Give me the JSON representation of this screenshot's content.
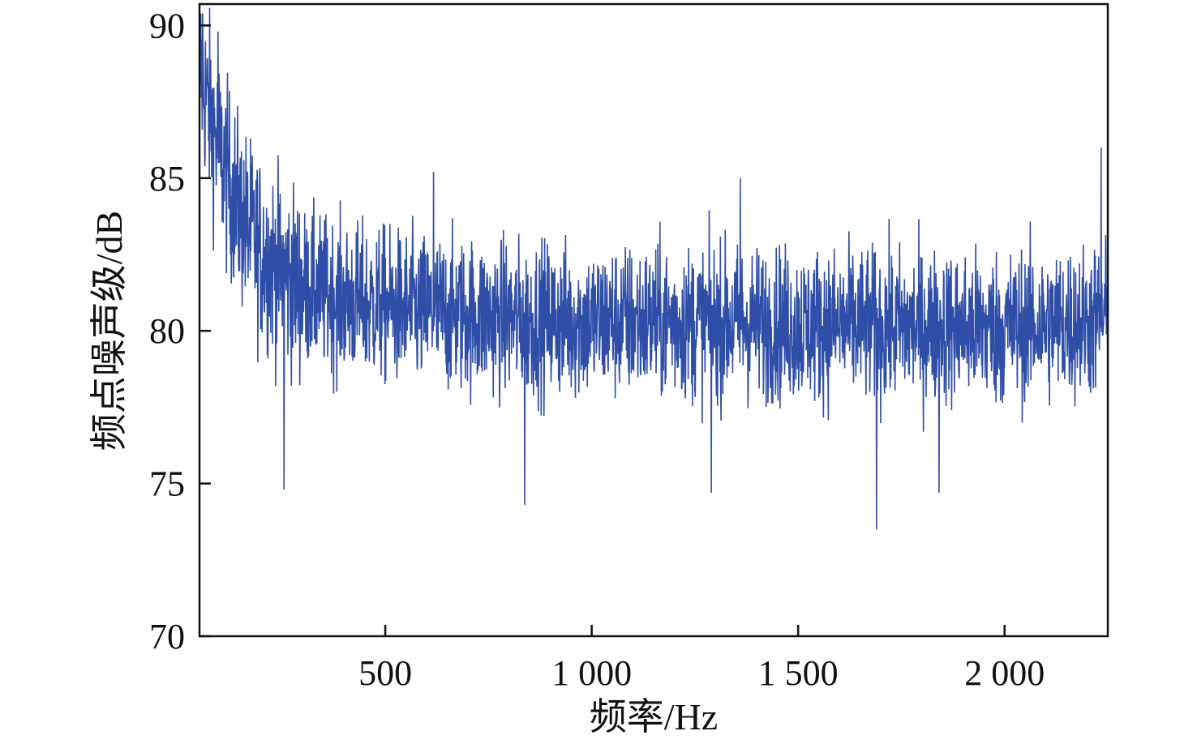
{
  "chart_data": {
    "type": "line",
    "xlabel": "频率/Hz",
    "ylabel": "频点噪声级/dB",
    "xlim": [
      50,
      2250
    ],
    "ylim": [
      70,
      90.7
    ],
    "xticks": [
      {
        "value": 500,
        "label": "500"
      },
      {
        "value": 1000,
        "label": "1 000"
      },
      {
        "value": 1500,
        "label": "1 500"
      },
      {
        "value": 2000,
        "label": "2 000"
      }
    ],
    "yticks": [
      {
        "value": 70,
        "label": "70"
      },
      {
        "value": 75,
        "label": "75"
      },
      {
        "value": 80,
        "label": "80"
      },
      {
        "value": 85,
        "label": "85"
      },
      {
        "value": 90,
        "label": "90"
      }
    ],
    "grid": false,
    "legend": "none",
    "series_color": "#2e4ea8",
    "trend": {
      "x": [
        50,
        60,
        80,
        100,
        120,
        150,
        180,
        200,
        250,
        300,
        400,
        500,
        600,
        800,
        1000,
        1200,
        1500,
        1800,
        2000,
        2200,
        2250
      ],
      "y": [
        88.8,
        88.0,
        86.8,
        85.8,
        84.9,
        83.8,
        83.0,
        82.6,
        81.9,
        81.4,
        81.0,
        80.8,
        80.6,
        80.4,
        80.3,
        80.3,
        80.2,
        80.1,
        80.1,
        80.3,
        80.4
      ]
    },
    "spread_db": 1.7,
    "extremes": [
      {
        "x": 58,
        "y": 90.4
      },
      {
        "x": 95,
        "y": 89.8
      },
      {
        "x": 255,
        "y": 74.8
      },
      {
        "x": 617,
        "y": 85.2
      },
      {
        "x": 838,
        "y": 74.3
      },
      {
        "x": 1290,
        "y": 74.7
      },
      {
        "x": 1360,
        "y": 85.0
      },
      {
        "x": 1690,
        "y": 73.5
      },
      {
        "x": 1841,
        "y": 74.7
      },
      {
        "x": 2234,
        "y": 86.0
      }
    ]
  }
}
